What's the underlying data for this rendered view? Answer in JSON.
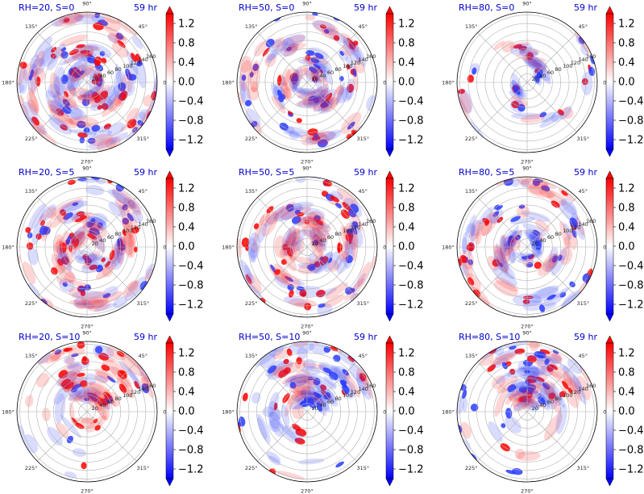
{
  "figure": {
    "time_label": "59 hr",
    "colors": {
      "positive": "#ff0000",
      "negative": "#0000ff",
      "neutral": "#ffffff",
      "title": "#0000cc"
    }
  },
  "chart_data": [
    {
      "type": "heatmap",
      "projection": "polar",
      "title": "RH=20, S=0",
      "time": "59 hr",
      "radial_ticks": [
        "20",
        "40",
        "60",
        "80",
        "100",
        "120",
        "140",
        "160"
      ],
      "angular_ticks": [
        "0°",
        "45°",
        "90°",
        "135°",
        "180°",
        "225°",
        "270°",
        "315°"
      ],
      "colorbar": {
        "ticks": [
          "1.2",
          "0.8",
          "0.4",
          "0.0",
          "−0.4",
          "−0.8",
          "−1.2"
        ],
        "range": [
          -1.4,
          1.4
        ],
        "cmap": "bwr",
        "extend": "both"
      }
    },
    {
      "type": "heatmap",
      "projection": "polar",
      "title": "RH=50, S=0",
      "time": "59 hr",
      "radial_ticks": [
        "20",
        "40",
        "60",
        "80",
        "100",
        "120",
        "140",
        "160"
      ],
      "angular_ticks": [
        "0°",
        "45°",
        "90°",
        "135°",
        "180°",
        "225°",
        "270°",
        "315°"
      ],
      "colorbar": {
        "ticks": [
          "1.2",
          "0.8",
          "0.4",
          "0.0",
          "−0.4",
          "−0.8",
          "−1.2"
        ],
        "range": [
          -1.4,
          1.4
        ],
        "cmap": "bwr",
        "extend": "both"
      }
    },
    {
      "type": "heatmap",
      "projection": "polar",
      "title": "RH=80, S=0",
      "time": "59 hr",
      "radial_ticks": [
        "20",
        "40",
        "60",
        "80",
        "100",
        "120",
        "140",
        "160"
      ],
      "angular_ticks": [
        "0°",
        "45°",
        "90°",
        "135°",
        "180°",
        "225°",
        "270°",
        "315°"
      ],
      "colorbar": {
        "ticks": [
          "1.2",
          "0.8",
          "0.4",
          "0.0",
          "−0.4",
          "−0.8",
          "−1.2"
        ],
        "range": [
          -1.4,
          1.4
        ],
        "cmap": "bwr",
        "extend": "both"
      }
    },
    {
      "type": "heatmap",
      "projection": "polar",
      "title": "RH=20, S=5",
      "time": "59 hr",
      "radial_ticks": [
        "20",
        "40",
        "60",
        "80",
        "100",
        "120",
        "140",
        "160"
      ],
      "angular_ticks": [
        "0°",
        "45°",
        "90°",
        "135°",
        "180°",
        "225°",
        "270°",
        "315°"
      ],
      "colorbar": {
        "ticks": [
          "1.2",
          "0.8",
          "0.4",
          "0.0",
          "−0.4",
          "−0.8",
          "−1.2"
        ],
        "range": [
          -1.4,
          1.4
        ],
        "cmap": "bwr",
        "extend": "both"
      }
    },
    {
      "type": "heatmap",
      "projection": "polar",
      "title": "RH=50, S=5",
      "time": "59 hr",
      "radial_ticks": [
        "20",
        "40",
        "60",
        "80",
        "100",
        "120",
        "140",
        "160"
      ],
      "angular_ticks": [
        "0°",
        "45°",
        "90°",
        "135°",
        "180°",
        "225°",
        "270°",
        "315°"
      ],
      "colorbar": {
        "ticks": [
          "1.2",
          "0.8",
          "0.4",
          "0.0",
          "−0.4",
          "−0.8",
          "−1.2"
        ],
        "range": [
          -1.4,
          1.4
        ],
        "cmap": "bwr",
        "extend": "both"
      }
    },
    {
      "type": "heatmap",
      "projection": "polar",
      "title": "RH=80, S=5",
      "time": "59 hr",
      "radial_ticks": [
        "20",
        "40",
        "60",
        "80",
        "100",
        "120",
        "140",
        "160"
      ],
      "angular_ticks": [
        "0°",
        "45°",
        "90°",
        "135°",
        "180°",
        "225°",
        "270°",
        "315°"
      ],
      "colorbar": {
        "ticks": [
          "1.2",
          "0.8",
          "0.4",
          "0.0",
          "−0.4",
          "−0.8",
          "−1.2"
        ],
        "range": [
          -1.4,
          1.4
        ],
        "cmap": "bwr",
        "extend": "both"
      }
    },
    {
      "type": "heatmap",
      "projection": "polar",
      "title": "RH=20, S=10",
      "time": "59 hr",
      "radial_ticks": [
        "20",
        "40",
        "60",
        "80",
        "100",
        "120",
        "140",
        "160"
      ],
      "angular_ticks": [
        "0°",
        "45°",
        "90°",
        "135°",
        "180°",
        "225°",
        "270°",
        "315°"
      ],
      "colorbar": {
        "ticks": [
          "1.2",
          "0.8",
          "0.4",
          "0.0",
          "−0.4",
          "−0.8",
          "−1.2"
        ],
        "range": [
          -1.4,
          1.4
        ],
        "cmap": "bwr",
        "extend": "both"
      }
    },
    {
      "type": "heatmap",
      "projection": "polar",
      "title": "RH=50, S=10",
      "time": "59 hr",
      "radial_ticks": [
        "20",
        "40",
        "60",
        "80",
        "100",
        "120",
        "140",
        "160"
      ],
      "angular_ticks": [
        "0°",
        "45°",
        "90°",
        "135°",
        "180°",
        "225°",
        "270°",
        "315°"
      ],
      "colorbar": {
        "ticks": [
          "1.2",
          "0.8",
          "0.4",
          "0.0",
          "−0.4",
          "−0.8",
          "−1.2"
        ],
        "range": [
          -1.4,
          1.4
        ],
        "cmap": "bwr",
        "extend": "both"
      }
    },
    {
      "type": "heatmap",
      "projection": "polar",
      "title": "RH=80, S=10",
      "time": "59 hr",
      "radial_ticks": [
        "20",
        "40",
        "60",
        "80",
        "100",
        "120",
        "140",
        "160"
      ],
      "angular_ticks": [
        "0°",
        "45°",
        "90°",
        "135°",
        "180°",
        "225°",
        "270°",
        "315°"
      ],
      "colorbar": {
        "ticks": [
          "1.2",
          "0.8",
          "0.4",
          "0.0",
          "−0.4",
          "−0.8",
          "−1.2"
        ],
        "range": [
          -1.4,
          1.4
        ],
        "cmap": "bwr",
        "extend": "both"
      }
    }
  ]
}
